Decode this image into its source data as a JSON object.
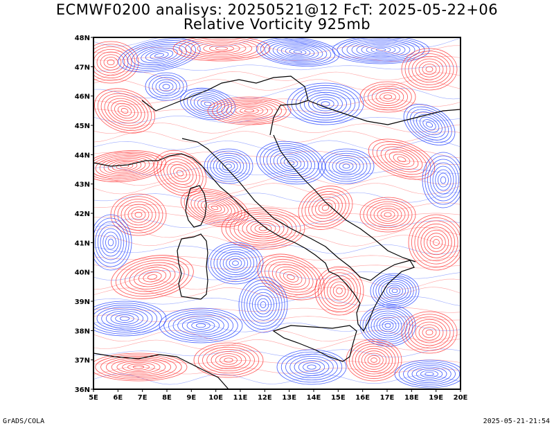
{
  "title": {
    "line1": "ECMWF0200 analisys: 20250521@12 FcT: 2025-05-22+06",
    "line2": "Relative Vorticity 925mb"
  },
  "map": {
    "lon_range": [
      5,
      20
    ],
    "lat_range": [
      36,
      48
    ],
    "lon_labels": [
      "5E",
      "6E",
      "7E",
      "8E",
      "9E",
      "10E",
      "11E",
      "12E",
      "13E",
      "14E",
      "15E",
      "16E",
      "17E",
      "18E",
      "19E",
      "20E"
    ],
    "lat_labels": [
      "36N",
      "37N",
      "38N",
      "39N",
      "40N",
      "41N",
      "42N",
      "43N",
      "44N",
      "45N",
      "46N",
      "47N",
      "48N"
    ],
    "colors": {
      "positive": "#ff3030",
      "negative": "#2040ff",
      "coast": "#000000"
    }
  },
  "footer": {
    "left": "GrADS/COLA",
    "right": "2025-05-21-21:54"
  }
}
